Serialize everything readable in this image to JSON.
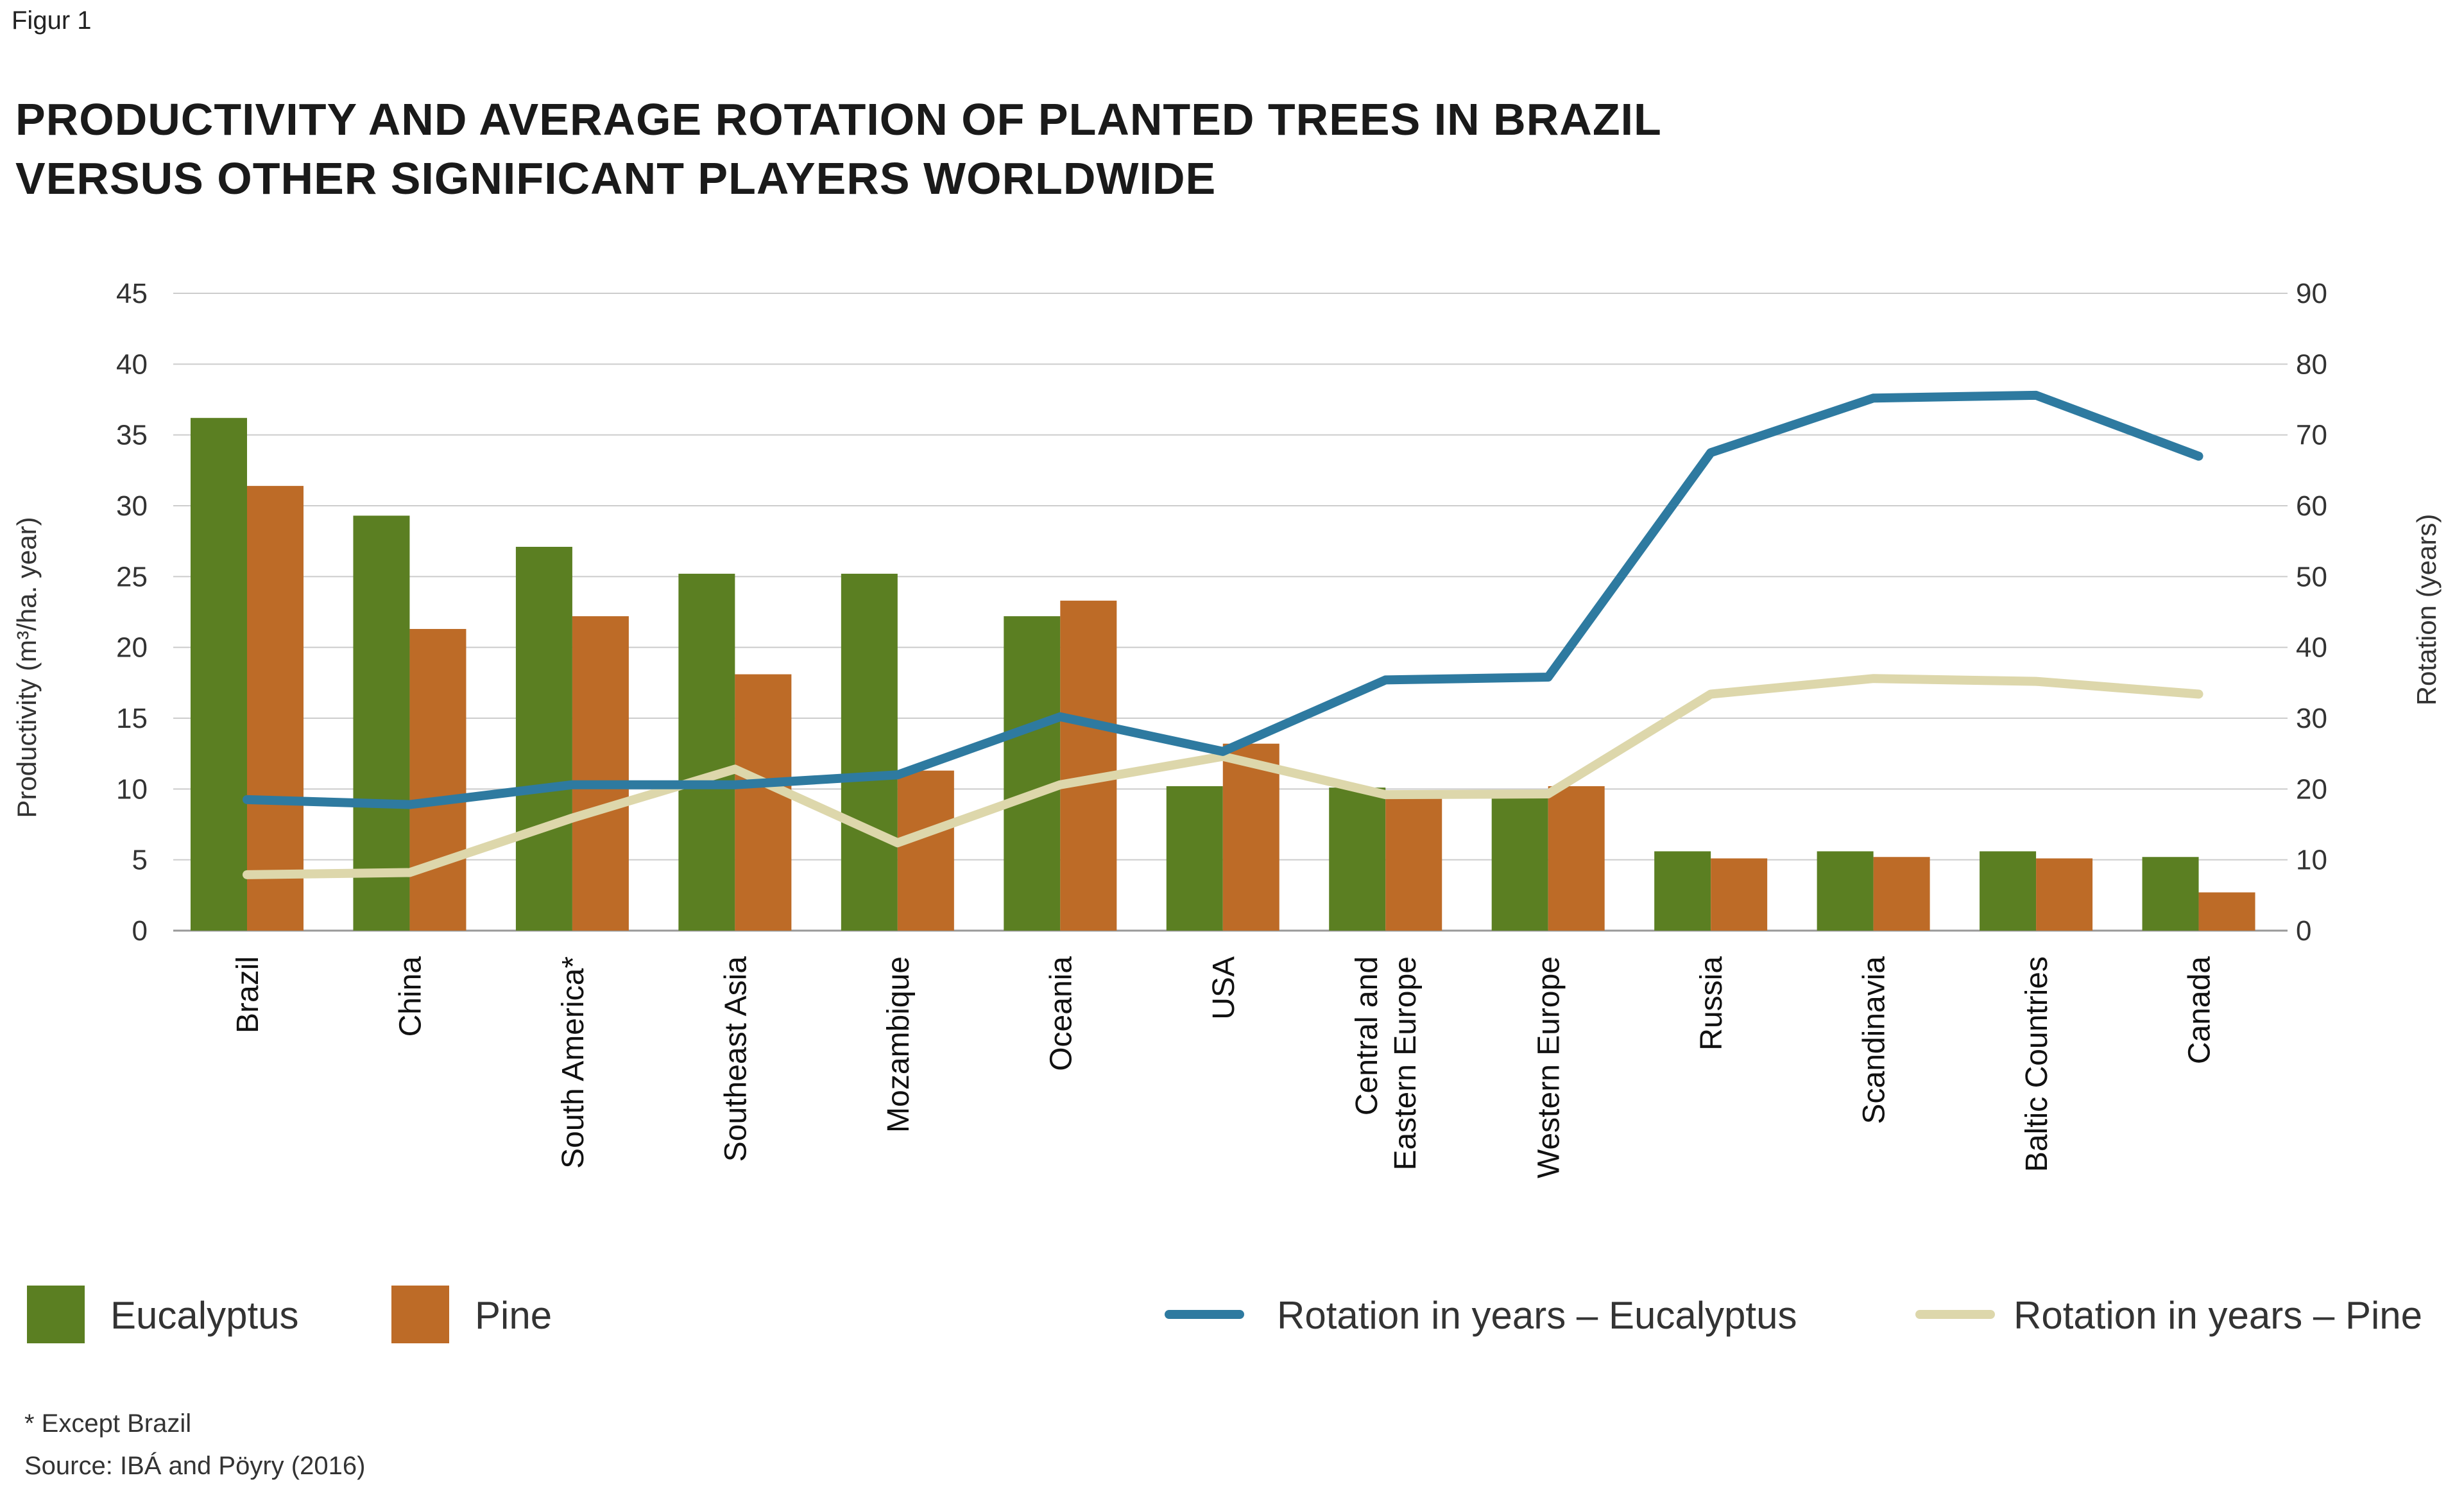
{
  "figure_label": "Figur 1",
  "title_lines": [
    "PRODUCTIVITY AND AVERAGE ROTATION OF PLANTED TREES IN BRAZIL",
    "VERSUS OTHER SIGNIFICANT PLAYERS WORLDWIDE"
  ],
  "footnote": "* Except Brazil",
  "source": "Source: IBÁ and Pöyry (2016)",
  "colors": {
    "eucalyptus": "#5b7f22",
    "pine": "#bd6b27",
    "rotation_eucalyptus": "#2e7aa0",
    "rotation_pine": "#ddd7ab",
    "grid": "#cccccc"
  },
  "chart_data": {
    "type": "bar",
    "categories": [
      [
        "Brazil"
      ],
      [
        "China"
      ],
      [
        "South America*"
      ],
      [
        "Southeast Asia"
      ],
      [
        "Mozambique"
      ],
      [
        "Oceania"
      ],
      [
        "USA"
      ],
      [
        "Central and",
        "Eastern Europe"
      ],
      [
        "Western Europe"
      ],
      [
        "Russia"
      ],
      [
        "Scandinavia"
      ],
      [
        "Baltic Countries"
      ],
      [
        "Canada"
      ]
    ],
    "ylabel": "Productivity (m³/ha. year)",
    "y2label": "Rotation (years)",
    "ylim": [
      0,
      45
    ],
    "y2lim": [
      0,
      90
    ],
    "yticks": [
      0,
      5,
      10,
      15,
      20,
      25,
      30,
      35,
      40,
      45
    ],
    "y2ticks": [
      0,
      10,
      20,
      30,
      40,
      50,
      60,
      70,
      80,
      90
    ],
    "grid": true,
    "legend_position": "bottom",
    "series": [
      {
        "name": "Eucalyptus",
        "type": "bar",
        "axis": "left",
        "values": [
          36.2,
          29.3,
          27.1,
          25.2,
          25.2,
          22.2,
          10.2,
          10.1,
          9.6,
          5.6,
          5.6,
          5.6,
          5.2
        ]
      },
      {
        "name": "Pine",
        "type": "bar",
        "axis": "left",
        "values": [
          31.4,
          21.3,
          22.2,
          18.1,
          11.3,
          23.3,
          13.2,
          9.4,
          10.2,
          5.1,
          5.2,
          5.1,
          2.7
        ]
      },
      {
        "name": "Rotation in years – Eucalyptus",
        "type": "line",
        "axis": "right",
        "values": [
          18.5,
          17.8,
          20.6,
          20.6,
          22.0,
          30.2,
          25.3,
          35.4,
          35.8,
          67.5,
          75.2,
          75.6,
          67.0
        ]
      },
      {
        "name": "Rotation in years – Pine",
        "type": "line",
        "axis": "right",
        "values": [
          7.9,
          8.2,
          15.9,
          22.8,
          12.4,
          20.6,
          24.6,
          19.2,
          19.3,
          33.4,
          35.6,
          35.2,
          33.4
        ]
      }
    ]
  }
}
